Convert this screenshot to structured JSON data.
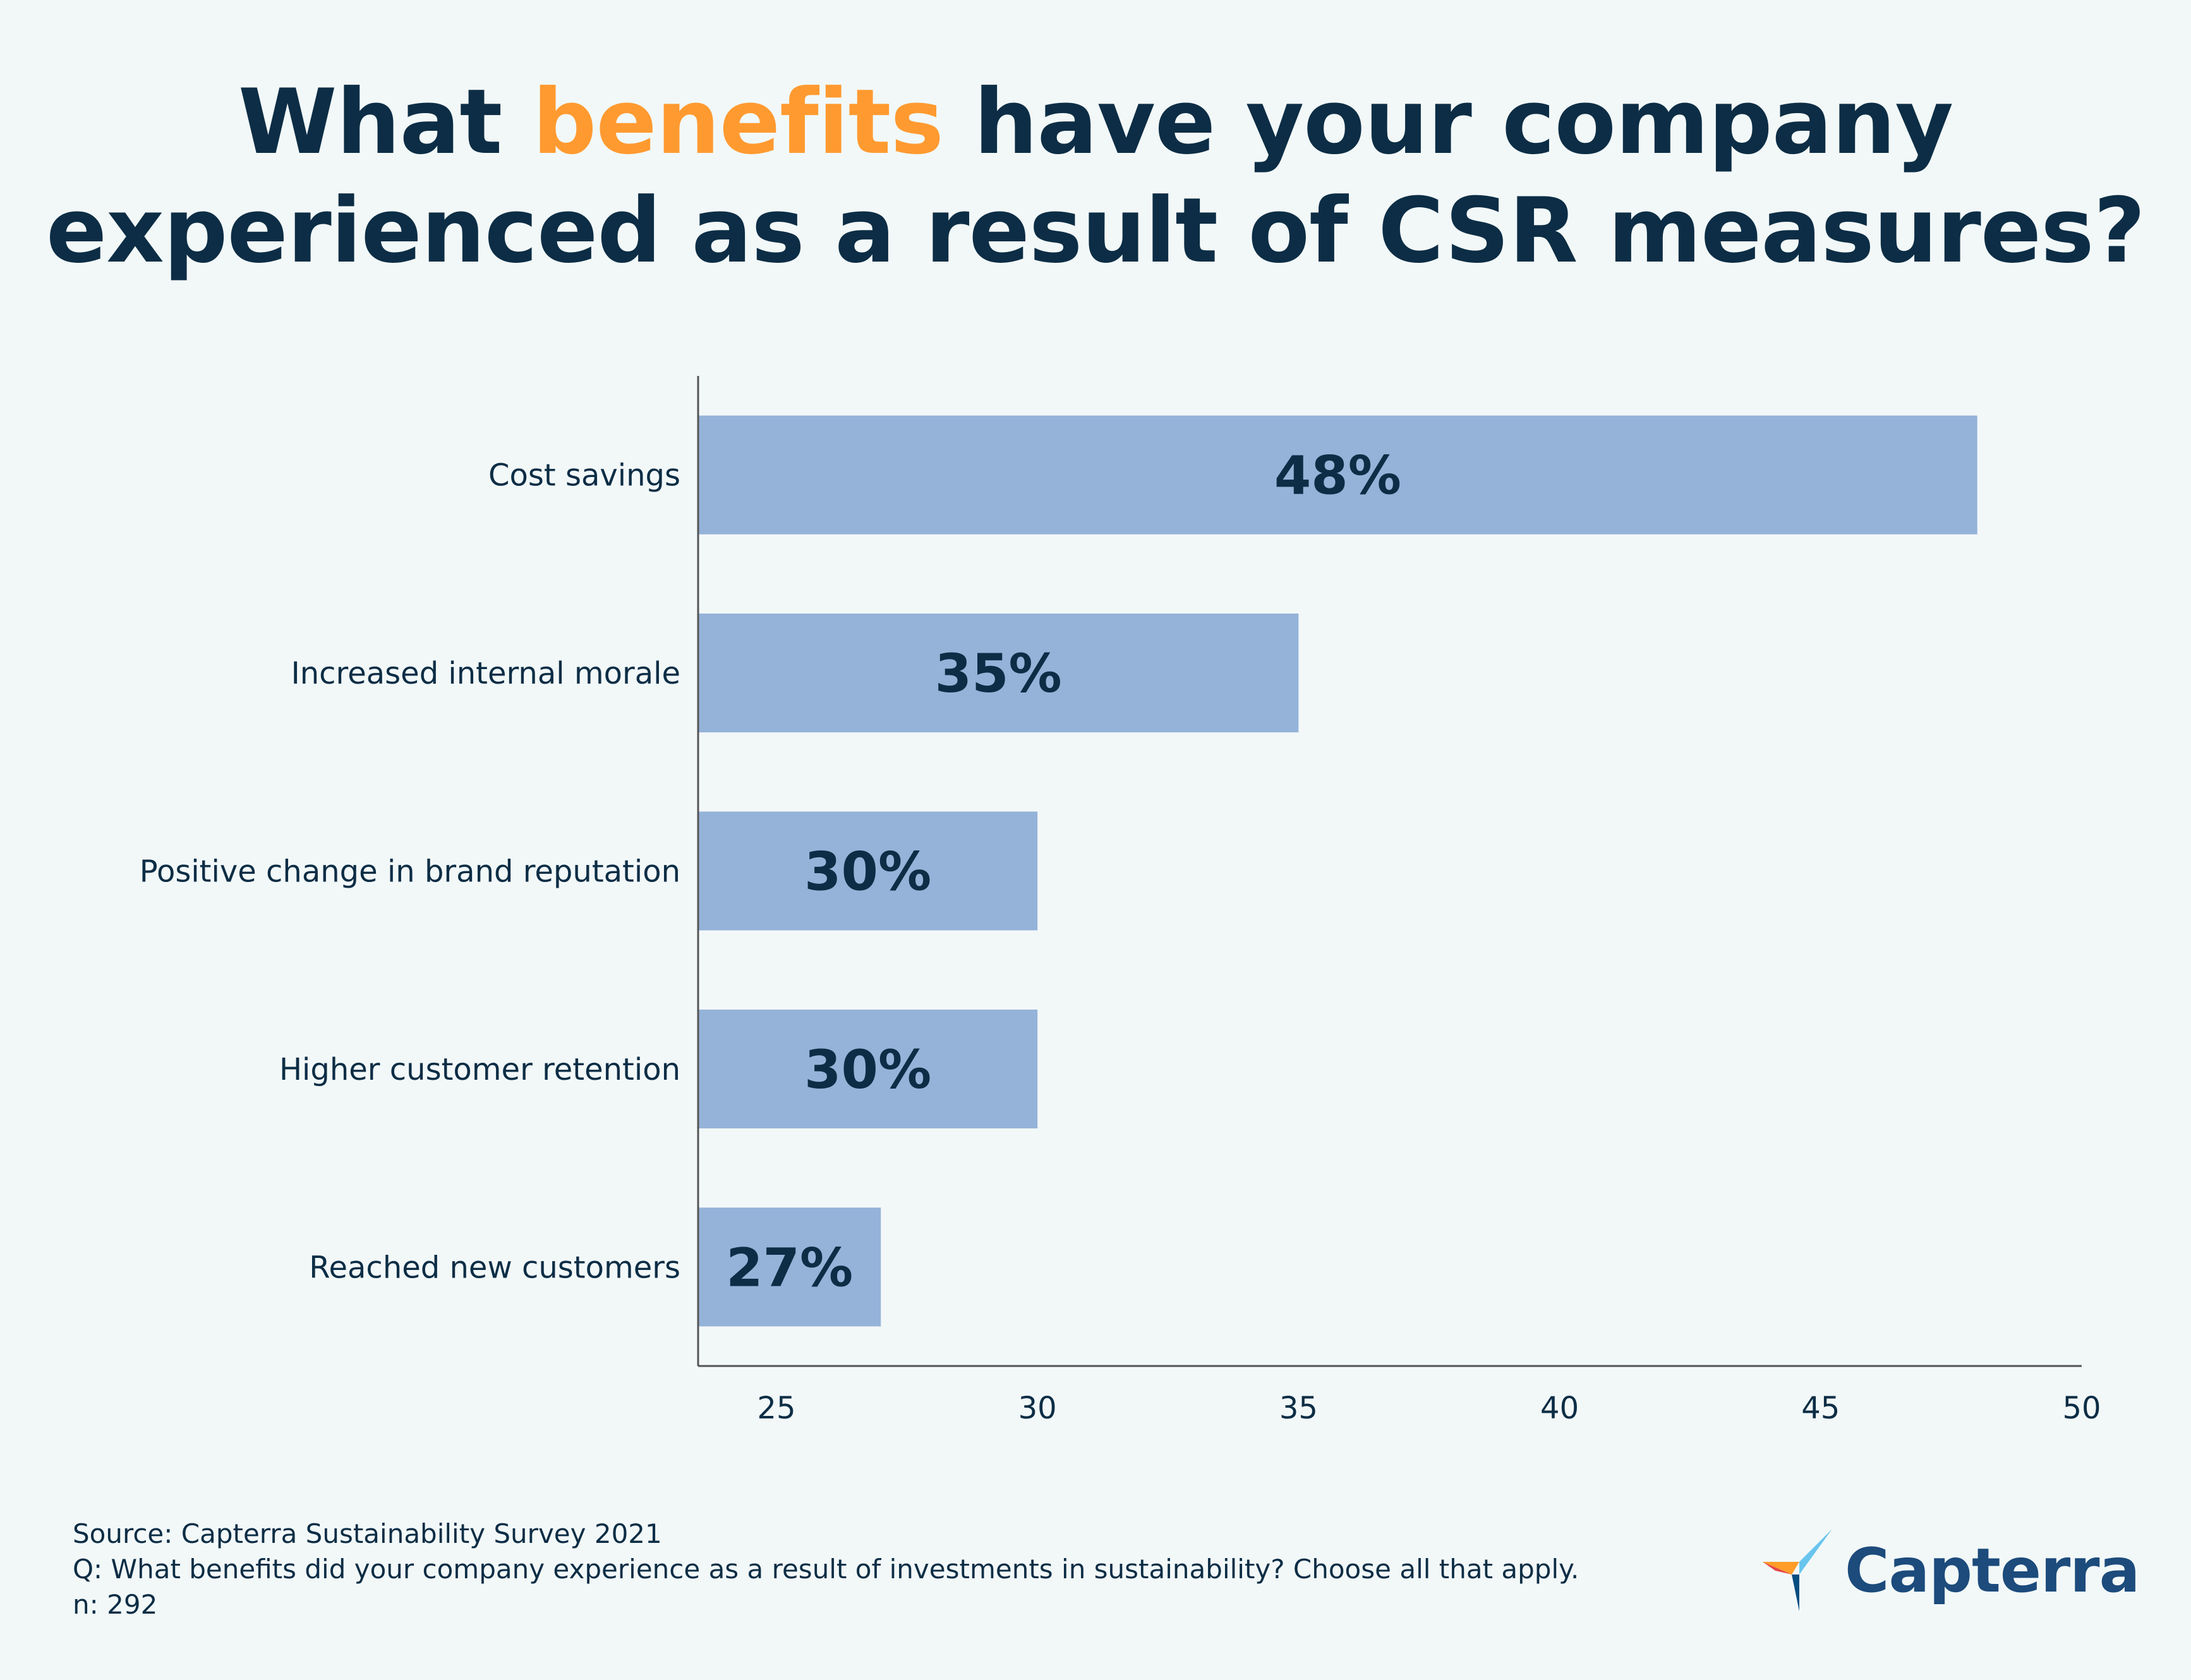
{
  "title": {
    "line1_before": "What ",
    "line1_highlight": "benefits",
    "line1_after": " have your company",
    "line2": "experienced as a result of CSR measures?"
  },
  "colors": {
    "bar": "#95b3d9",
    "text": "#0c2d45",
    "highlight": "#ff9a30",
    "axis": "#555555",
    "background": "#f2f8f8"
  },
  "chart_data": {
    "type": "bar",
    "orientation": "horizontal",
    "title": "What benefits have your company experienced as a result of CSR measures?",
    "categories": [
      "Cost savings",
      "Increased internal morale",
      "Positive change in brand reputation",
      "Higher customer retention",
      "Reached new customers"
    ],
    "values": [
      48,
      35,
      30,
      30,
      27
    ],
    "value_labels": [
      "48%",
      "35%",
      "30%",
      "30%",
      "27%"
    ],
    "xlim": [
      23.5,
      50
    ],
    "xticks": [
      25,
      30,
      35,
      40,
      45,
      50
    ],
    "xlabel": "",
    "ylabel": "",
    "grid": false,
    "legend": "none"
  },
  "source": {
    "line1": "Source: Capterra Sustainability Survey 2021",
    "line2": "Q: What benefits did your company experience as a result of investments in sustainability? Choose all that apply.",
    "line3": "n: 292"
  },
  "logo": {
    "text": "Capterra"
  }
}
